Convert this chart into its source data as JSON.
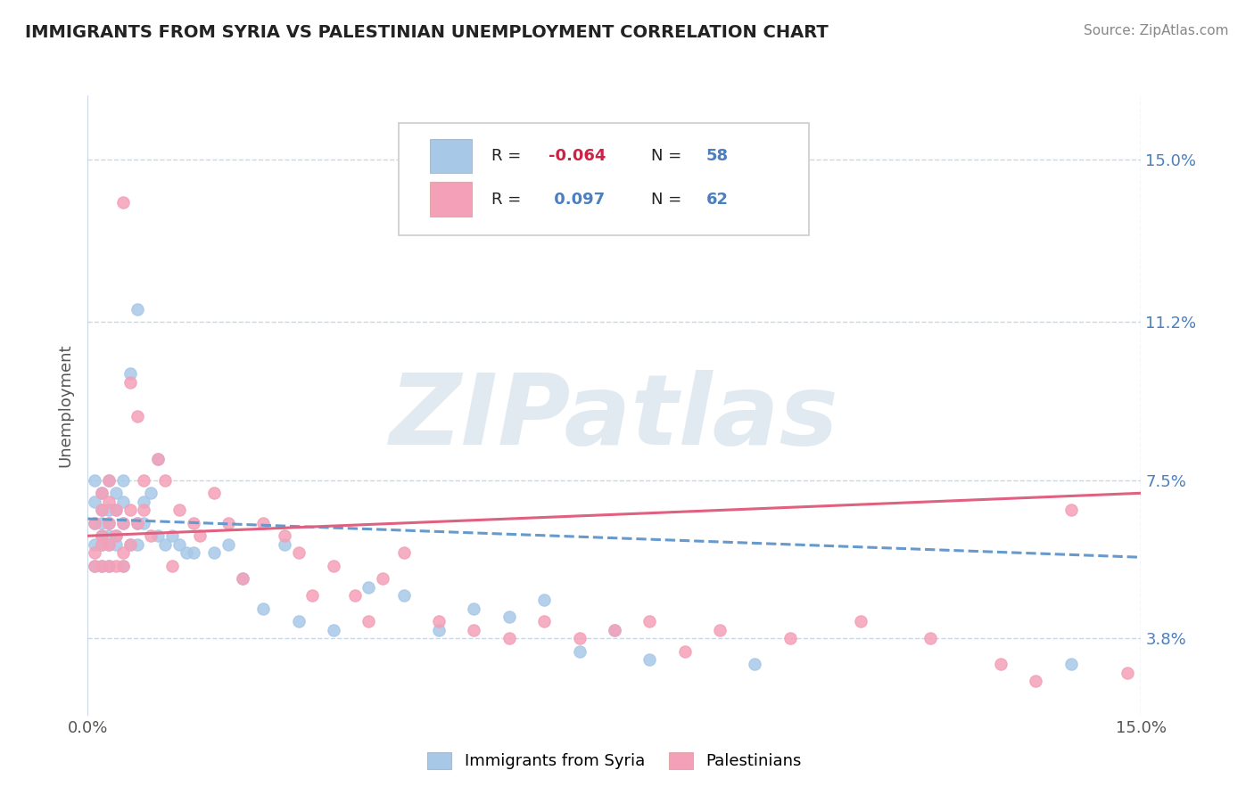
{
  "title": "IMMIGRANTS FROM SYRIA VS PALESTINIAN UNEMPLOYMENT CORRELATION CHART",
  "source": "Source: ZipAtlas.com",
  "ylabel": "Unemployment",
  "xlim": [
    0,
    0.15
  ],
  "ylim": [
    0.02,
    0.165
  ],
  "yticks": [
    0.038,
    0.075,
    0.112,
    0.15
  ],
  "ytick_labels": [
    "3.8%",
    "7.5%",
    "11.2%",
    "15.0%"
  ],
  "series1_name": "Immigrants from Syria",
  "series1_R": "-0.064",
  "series1_N": "58",
  "series1_color": "#a8c8e8",
  "series1_line_color": "#6699cc",
  "series2_name": "Palestinians",
  "series2_R": "0.097",
  "series2_N": "62",
  "series2_color": "#f4a0b8",
  "series2_line_color": "#e06080",
  "background_color": "#ffffff",
  "grid_color": "#c8d8e8",
  "watermark": "ZIPatlas",
  "watermark_color": "#d0dce8",
  "legend_R_color": "#cc2244",
  "legend_N_color": "#4a7fc0",
  "title_color": "#222222",
  "source_color": "#888888",
  "ylabel_color": "#555555",
  "series1_x": [
    0.001,
    0.001,
    0.001,
    0.001,
    0.001,
    0.002,
    0.002,
    0.002,
    0.002,
    0.002,
    0.002,
    0.003,
    0.003,
    0.003,
    0.003,
    0.003,
    0.003,
    0.004,
    0.004,
    0.004,
    0.004,
    0.005,
    0.005,
    0.005,
    0.005,
    0.006,
    0.006,
    0.007,
    0.007,
    0.007,
    0.008,
    0.008,
    0.009,
    0.01,
    0.01,
    0.011,
    0.012,
    0.013,
    0.014,
    0.015,
    0.018,
    0.02,
    0.022,
    0.025,
    0.028,
    0.03,
    0.035,
    0.04,
    0.045,
    0.05,
    0.055,
    0.06,
    0.065,
    0.07,
    0.075,
    0.08,
    0.095,
    0.14
  ],
  "series1_y": [
    0.055,
    0.06,
    0.065,
    0.07,
    0.075,
    0.055,
    0.06,
    0.062,
    0.065,
    0.068,
    0.072,
    0.055,
    0.06,
    0.062,
    0.065,
    0.068,
    0.075,
    0.06,
    0.062,
    0.068,
    0.072,
    0.055,
    0.065,
    0.07,
    0.075,
    0.06,
    0.1,
    0.06,
    0.065,
    0.115,
    0.065,
    0.07,
    0.072,
    0.062,
    0.08,
    0.06,
    0.062,
    0.06,
    0.058,
    0.058,
    0.058,
    0.06,
    0.052,
    0.045,
    0.06,
    0.042,
    0.04,
    0.05,
    0.048,
    0.04,
    0.045,
    0.043,
    0.047,
    0.035,
    0.04,
    0.033,
    0.032,
    0.032
  ],
  "series2_x": [
    0.001,
    0.001,
    0.001,
    0.002,
    0.002,
    0.002,
    0.002,
    0.002,
    0.003,
    0.003,
    0.003,
    0.003,
    0.003,
    0.004,
    0.004,
    0.004,
    0.005,
    0.005,
    0.005,
    0.005,
    0.006,
    0.006,
    0.006,
    0.007,
    0.007,
    0.008,
    0.008,
    0.009,
    0.01,
    0.011,
    0.012,
    0.013,
    0.015,
    0.016,
    0.018,
    0.02,
    0.022,
    0.025,
    0.028,
    0.03,
    0.032,
    0.035,
    0.038,
    0.04,
    0.042,
    0.045,
    0.05,
    0.055,
    0.06,
    0.065,
    0.07,
    0.075,
    0.08,
    0.085,
    0.09,
    0.1,
    0.11,
    0.12,
    0.13,
    0.135,
    0.14,
    0.148
  ],
  "series2_y": [
    0.055,
    0.058,
    0.065,
    0.055,
    0.06,
    0.062,
    0.068,
    0.072,
    0.055,
    0.06,
    0.065,
    0.07,
    0.075,
    0.055,
    0.062,
    0.068,
    0.055,
    0.058,
    0.14,
    0.065,
    0.06,
    0.068,
    0.098,
    0.065,
    0.09,
    0.068,
    0.075,
    0.062,
    0.08,
    0.075,
    0.055,
    0.068,
    0.065,
    0.062,
    0.072,
    0.065,
    0.052,
    0.065,
    0.062,
    0.058,
    0.048,
    0.055,
    0.048,
    0.042,
    0.052,
    0.058,
    0.042,
    0.04,
    0.038,
    0.042,
    0.038,
    0.04,
    0.042,
    0.035,
    0.04,
    0.038,
    0.042,
    0.038,
    0.032,
    0.028,
    0.068,
    0.03
  ]
}
